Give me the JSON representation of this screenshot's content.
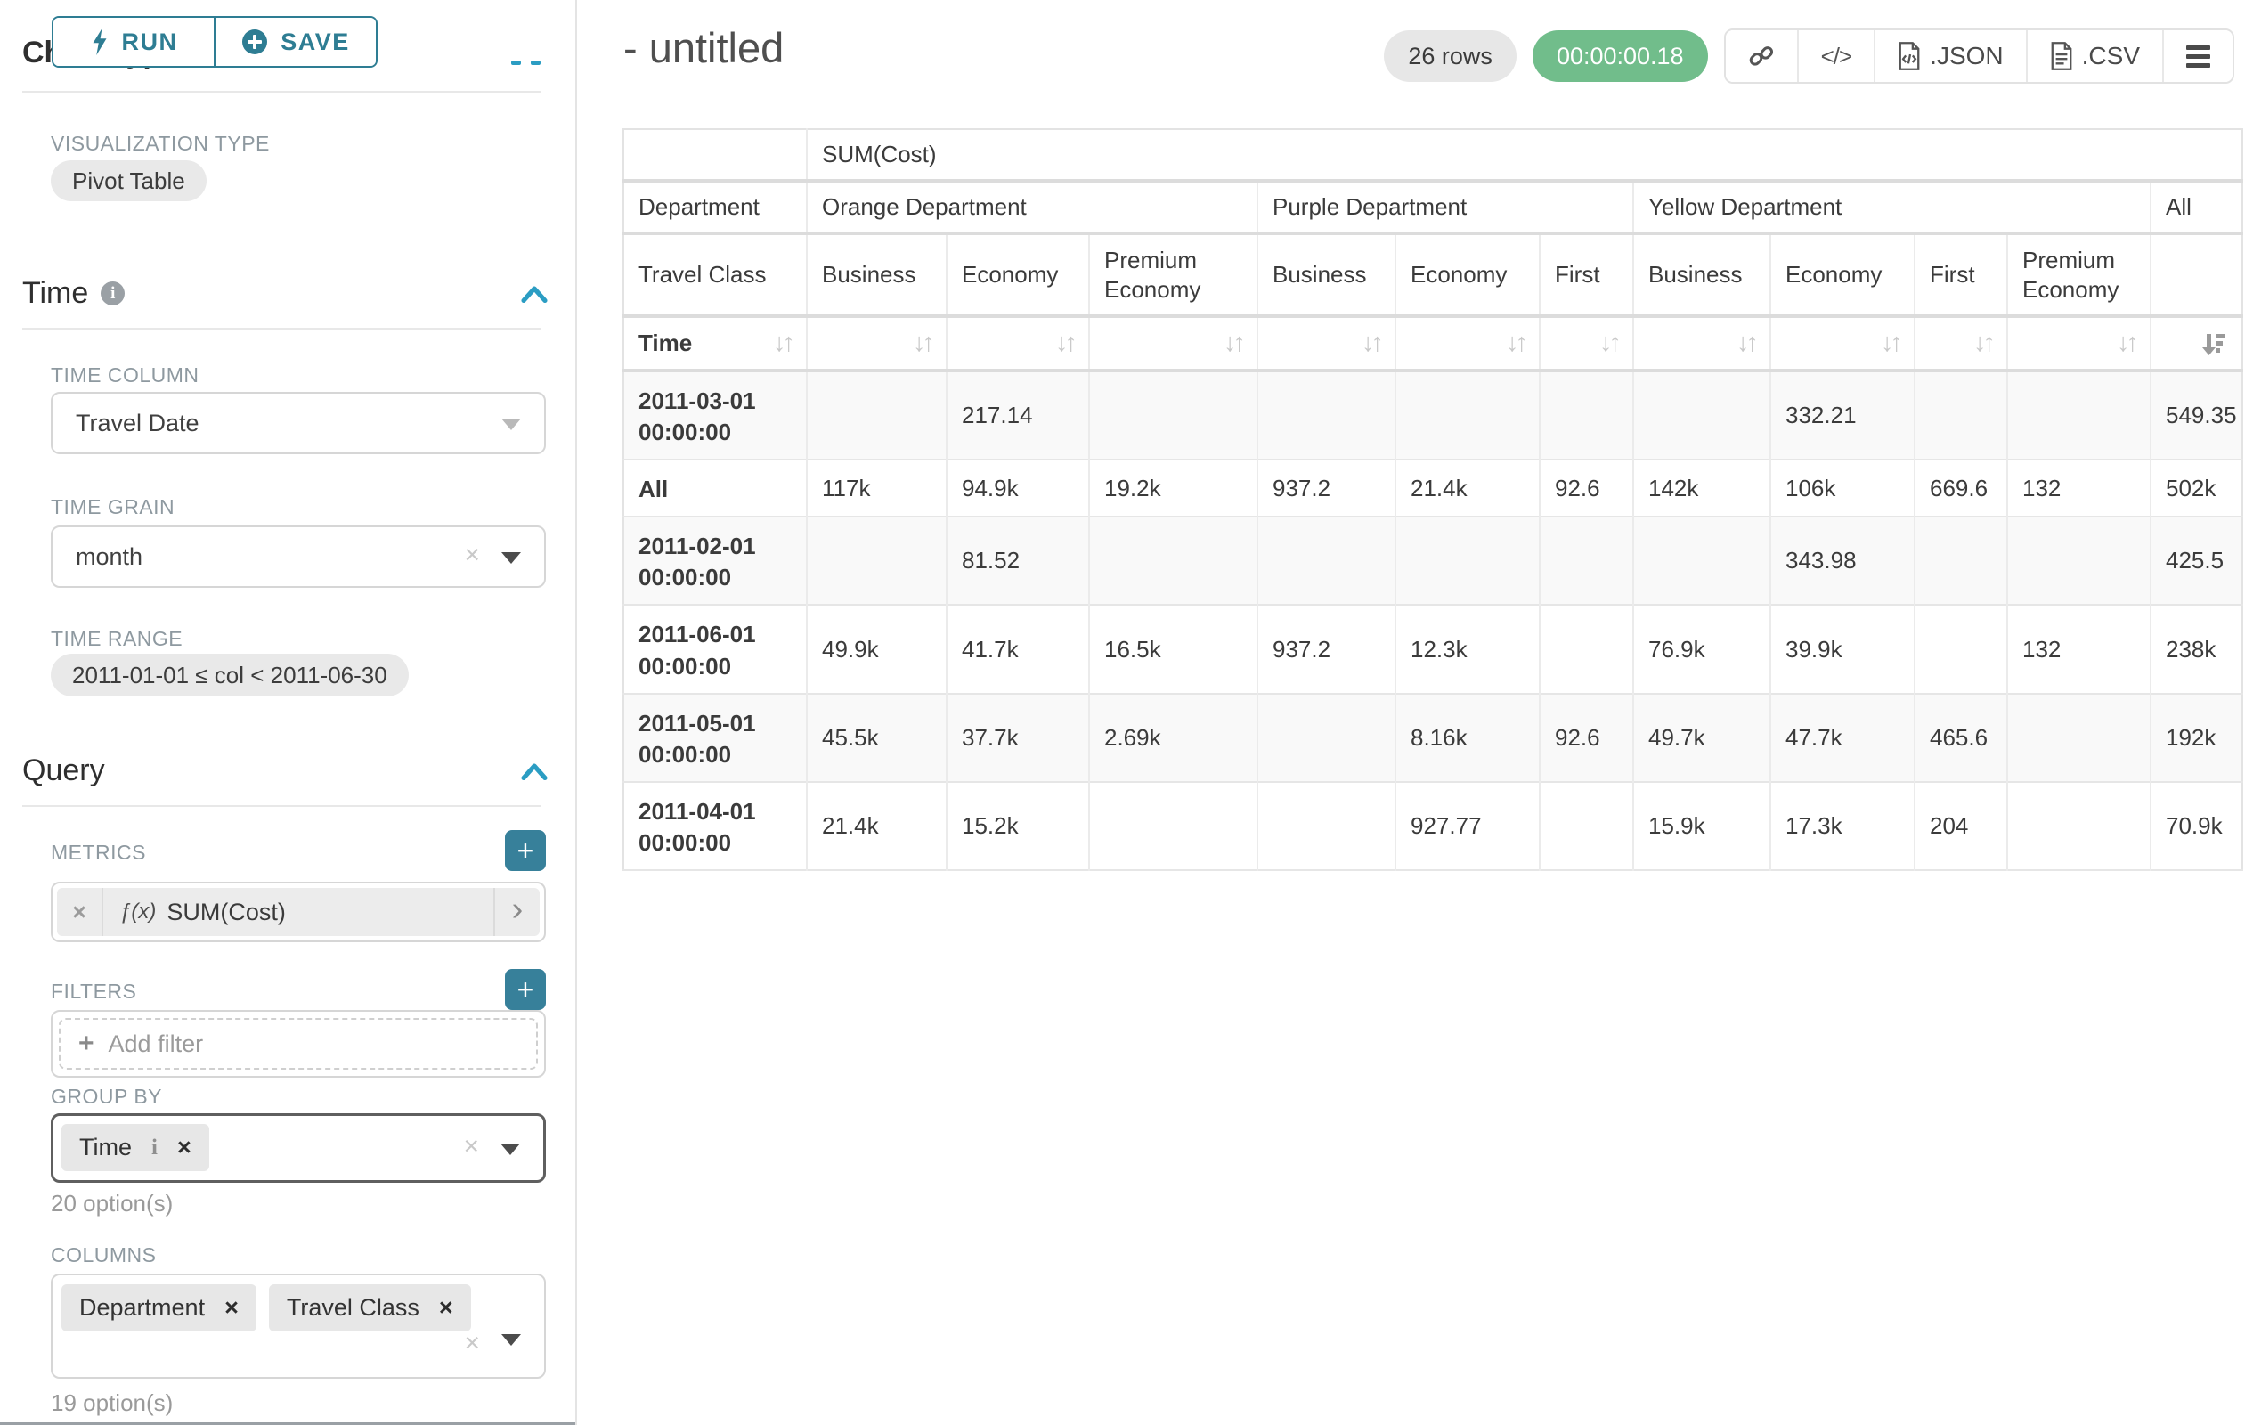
{
  "sidebar": {
    "run_label": "RUN",
    "save_label": "SAVE",
    "section_chart_type": "Chart Type",
    "viz_type_label": "VISUALIZATION TYPE",
    "viz_type_value": "Pivot Table",
    "section_time": "Time",
    "time_column_label": "TIME COLUMN",
    "time_column_value": "Travel Date",
    "time_grain_label": "TIME GRAIN",
    "time_grain_value": "month",
    "time_range_label": "TIME RANGE",
    "time_range_value": "2011-01-01 ≤ col < 2011-06-30",
    "section_query": "Query",
    "metrics_label": "METRICS",
    "metric_value": "SUM(Cost)",
    "filters_label": "FILTERS",
    "add_filter_label": "Add filter",
    "group_by_label": "GROUP BY",
    "group_by_values": [
      "Time"
    ],
    "group_by_options_hint": "20 option(s)",
    "columns_label": "COLUMNS",
    "columns_values": [
      "Department",
      "Travel Class"
    ],
    "columns_options_hint": "19 option(s)"
  },
  "header": {
    "title": "- untitled",
    "row_count": "26 rows",
    "timer": "00:00:00.18",
    "export_json_label": ".JSON",
    "export_csv_label": ".CSV"
  },
  "icons": {
    "close": "×",
    "sort_updown": "↓↑",
    "chevron_right": "›",
    "add": "+",
    "code": "</>",
    "fx": "ƒ(x)",
    "info": "i"
  },
  "colors": {
    "teal": "#2e7d93",
    "chevron_blue": "#2b9dc3",
    "timer_green": "#71bd8b",
    "pill_gray": "#e9e9e9"
  },
  "pivot": {
    "metric_header": "SUM(Cost)",
    "row2_header": "Department",
    "row3_header": "Travel Class",
    "row4_header": "Time",
    "groups": [
      {
        "label": "Orange Department",
        "cols": [
          "Business",
          "Economy",
          "Premium Economy"
        ]
      },
      {
        "label": "Purple Department",
        "cols": [
          "Business",
          "Economy",
          "First"
        ]
      },
      {
        "label": "Yellow Department",
        "cols": [
          "Business",
          "Economy",
          "First",
          "Premium Economy"
        ]
      },
      {
        "label": "All",
        "cols": [
          ""
        ]
      }
    ],
    "rows": [
      {
        "label": "2011-03-01 00:00:00",
        "values": [
          "",
          "217.14",
          "",
          "",
          "",
          "",
          "",
          "332.21",
          "",
          "",
          "549.35"
        ]
      },
      {
        "label": "All",
        "values": [
          "117k",
          "94.9k",
          "19.2k",
          "937.2",
          "21.4k",
          "92.6",
          "142k",
          "106k",
          "669.6",
          "132",
          "502k"
        ]
      },
      {
        "label": "2011-02-01 00:00:00",
        "values": [
          "",
          "81.52",
          "",
          "",
          "",
          "",
          "",
          "343.98",
          "",
          "",
          "425.5"
        ]
      },
      {
        "label": "2011-06-01 00:00:00",
        "values": [
          "49.9k",
          "41.7k",
          "16.5k",
          "937.2",
          "12.3k",
          "",
          "76.9k",
          "39.9k",
          "",
          "132",
          "238k"
        ]
      },
      {
        "label": "2011-05-01 00:00:00",
        "values": [
          "45.5k",
          "37.7k",
          "2.69k",
          "",
          "8.16k",
          "92.6",
          "49.7k",
          "47.7k",
          "465.6",
          "",
          "192k"
        ]
      },
      {
        "label": "2011-04-01 00:00:00",
        "values": [
          "21.4k",
          "15.2k",
          "",
          "",
          "927.77",
          "",
          "15.9k",
          "17.3k",
          "204",
          "",
          "70.9k"
        ]
      }
    ],
    "sort_state": "last_column_descending"
  }
}
